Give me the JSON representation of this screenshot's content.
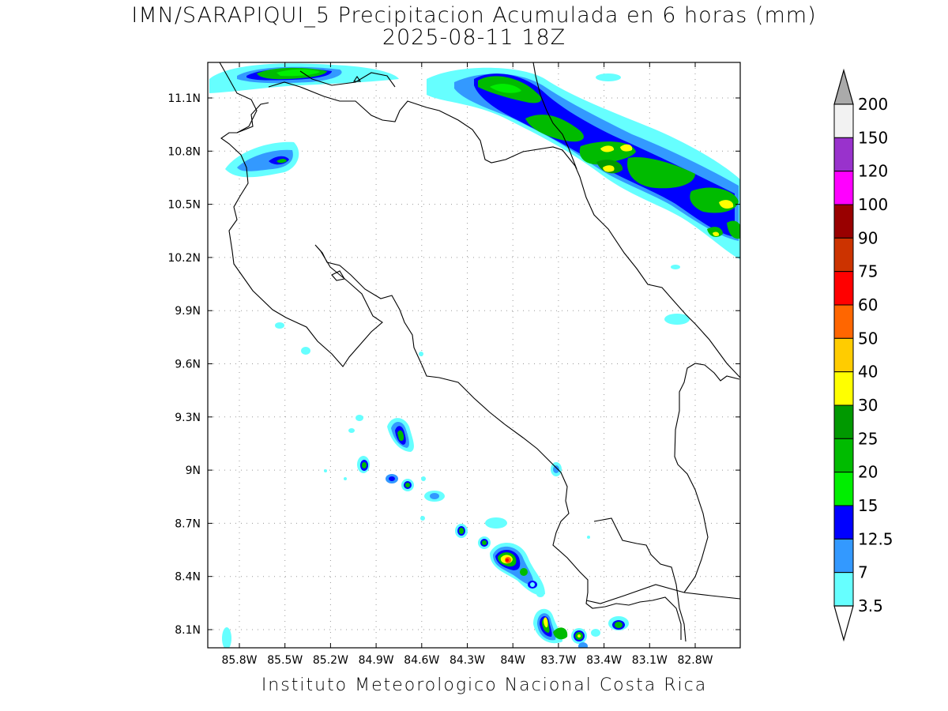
{
  "map": {
    "title": "IMN/SARAPIQUI_5 Precipitacion Acumulada en 6 horas (mm)",
    "subtitle": "2025-08-11 18Z",
    "footer": "Instituto Meteorologico Nacional Costa Rica",
    "lat_labels": [
      "11.1N",
      "10.8N",
      "10.5N",
      "10.2N",
      "9.9N",
      "9.6N",
      "9.3N",
      "9N",
      "8.7N",
      "8.4N",
      "8.1N"
    ],
    "lon_labels": [
      "85.8W",
      "85.5W",
      "85.2W",
      "84.9W",
      "84.6W",
      "84.3W",
      "84W",
      "83.7W",
      "83.4W",
      "83.1W",
      "82.8W"
    ],
    "grid": true
  },
  "colorbar": {
    "labels": [
      "200",
      "150",
      "120",
      "100",
      "90",
      "75",
      "60",
      "50",
      "40",
      "30",
      "25",
      "20",
      "15",
      "12.5",
      "7",
      "3.5"
    ],
    "colors": [
      "#f2f2f2",
      "#9932cc",
      "#ff00ff",
      "#990000",
      "#cc3300",
      "#ff0000",
      "#ff6600",
      "#ffcc00",
      "#ffff00",
      "#009900",
      "#00bb00",
      "#00ee00",
      "#0000ff",
      "#3399ff",
      "#66ffff"
    ],
    "top_arrow_color": "#aaaaaa",
    "bottom_arrow_color": "#ffffff"
  }
}
